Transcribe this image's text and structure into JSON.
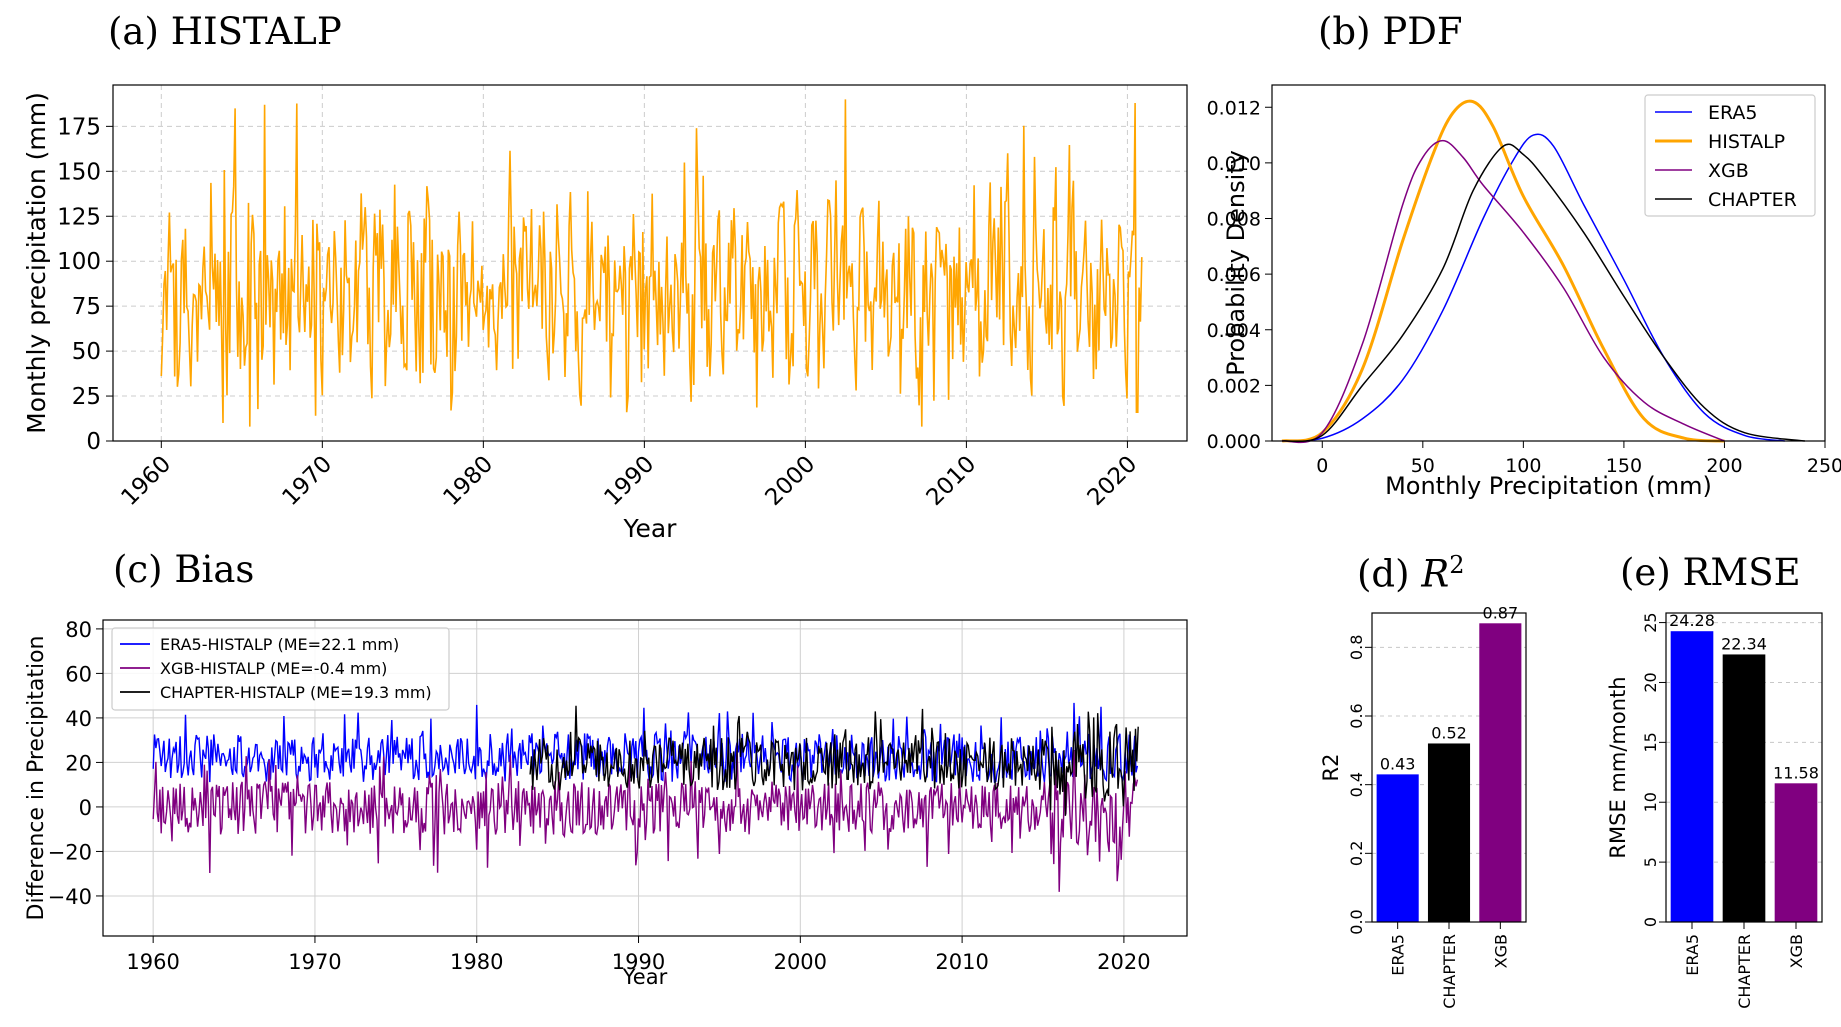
{
  "panel_titles": {
    "a": "(a) HISTALP",
    "b": "(b) PDF",
    "c": "(c) Bias",
    "d_prefix": "(d) ",
    "d_symbol": "R",
    "d_sup": "2",
    "e": "(e) RMSE"
  },
  "colors": {
    "histalp": "#FFA500",
    "era5": "#0000FF",
    "xgb": "#800080",
    "chapter": "#000000"
  },
  "chart_data": [
    {
      "id": "a",
      "type": "line",
      "title": "(a) HISTALP",
      "xlabel": "Year",
      "ylabel": "Monthly precipitation (mm)",
      "xlim": [
        1957,
        2023.7
      ],
      "ylim": [
        0,
        198
      ],
      "xticks": [
        "1960",
        "1970",
        "1980",
        "1990",
        "2000",
        "2010",
        "2020"
      ],
      "yticks": [
        "0",
        "25",
        "50",
        "75",
        "100",
        "125",
        "150",
        "175"
      ],
      "grid": true,
      "series": [
        {
          "color": "#FFA500",
          "x_start": 1960.0,
          "x_step_years": 0.0833,
          "n_points": 732,
          "mean": 80,
          "min": 8,
          "max": 190,
          "peaks": [
            [
              1964.6,
              185
            ],
            [
              1966.4,
              187
            ],
            [
              2002.5,
              190
            ],
            [
              2020.5,
              188
            ],
            [
              1993.2,
              174
            ],
            [
              2012.6,
              160
            ],
            [
              2014.2,
              158
            ]
          ],
          "troughs": [
            [
              1963.8,
              10
            ],
            [
              1965.5,
              8
            ],
            [
              1969.6,
              14
            ],
            [
              2007.2,
              8
            ],
            [
              1988.9,
              16
            ],
            [
              2020.6,
              16
            ]
          ]
        }
      ]
    },
    {
      "id": "b",
      "type": "line",
      "title": "(b) PDF",
      "xlabel": "Monthly Precipitation (mm)",
      "ylabel": "Probability Density",
      "xlim": [
        -25,
        250
      ],
      "ylim": [
        0,
        0.0128
      ],
      "xticks": [
        "0",
        "50",
        "100",
        "150",
        "200",
        "250"
      ],
      "yticks": [
        "0.000",
        "0.002",
        "0.004",
        "0.006",
        "0.008",
        "0.010",
        "0.012"
      ],
      "legend_position": "top-right",
      "series": [
        {
          "name": "ERA5",
          "color": "#0000FF",
          "x": [
            -20,
            0,
            20,
            40,
            60,
            80,
            95,
            105,
            115,
            130,
            150,
            170,
            190,
            210,
            230
          ],
          "y": [
            0,
            0.0001,
            0.0008,
            0.0022,
            0.0047,
            0.008,
            0.0101,
            0.011,
            0.0106,
            0.0085,
            0.0058,
            0.003,
            0.001,
            0.0002,
            0
          ]
        },
        {
          "name": "HISTALP",
          "color": "#FFA500",
          "x": [
            -20,
            0,
            20,
            40,
            55,
            65,
            75,
            85,
            100,
            120,
            140,
            160,
            180,
            200
          ],
          "y": [
            0,
            0.0003,
            0.0026,
            0.0072,
            0.0103,
            0.0118,
            0.0122,
            0.0113,
            0.0088,
            0.0063,
            0.0033,
            0.0008,
            0.0001,
            0
          ]
        },
        {
          "name": "XGB",
          "color": "#800080",
          "x": [
            -20,
            0,
            20,
            40,
            50,
            60,
            70,
            80,
            100,
            120,
            140,
            160,
            180,
            200
          ],
          "y": [
            0,
            0.0003,
            0.0035,
            0.0085,
            0.0102,
            0.0108,
            0.0102,
            0.0092,
            0.0075,
            0.0055,
            0.003,
            0.0014,
            0.0006,
            0
          ]
        },
        {
          "name": "CHAPTER",
          "color": "#000000",
          "x": [
            -20,
            0,
            20,
            40,
            60,
            75,
            90,
            100,
            110,
            130,
            150,
            170,
            190,
            210,
            240
          ],
          "y": [
            0,
            0.0002,
            0.002,
            0.0038,
            0.0062,
            0.009,
            0.0106,
            0.0103,
            0.0095,
            0.0075,
            0.0052,
            0.003,
            0.0012,
            0.0003,
            0
          ]
        }
      ]
    },
    {
      "id": "c",
      "type": "line",
      "title": "(c) Bias",
      "xlabel": "Year",
      "ylabel": "Difference in Precipitation",
      "xlim": [
        1956.9,
        2023.9
      ],
      "ylim": [
        -58,
        84
      ],
      "xticks": [
        "1960",
        "1970",
        "1980",
        "1990",
        "2000",
        "2010",
        "2020"
      ],
      "yticks": [
        "−40",
        "−20",
        "0",
        "20",
        "40",
        "60",
        "80"
      ],
      "grid": true,
      "legend_position": "top-left",
      "series": [
        {
          "name": "ERA5-HISTALP (ME=22.1 mm)",
          "color": "#0000FF",
          "x_start": 1960.0,
          "x_end": 2020.9,
          "mean": 22.1
        },
        {
          "name": "XGB-HISTALP (ME=-0.4 mm)",
          "color": "#800080",
          "x_start": 1960.0,
          "x_end": 2020.9,
          "mean": -0.4
        },
        {
          "name": "CHAPTER-HISTALP (ME=19.3 mm)",
          "color": "#000000",
          "x_start": 1983.3,
          "x_end": 2020.9,
          "mean": 19.3
        }
      ]
    },
    {
      "id": "d",
      "type": "bar",
      "title": "(d) R²",
      "ylabel": "R2",
      "categories": [
        "ERA5",
        "CHAPTER",
        "XGB"
      ],
      "values": [
        0.43,
        0.52,
        0.87
      ],
      "value_labels": [
        "0.43",
        "0.52",
        "0.87"
      ],
      "bar_colors": [
        "#0000FF",
        "#000000",
        "#800080"
      ],
      "ylim": [
        0,
        0.9
      ],
      "yticks": [
        "0.0",
        "0.2",
        "0.4",
        "0.6",
        "0.8"
      ],
      "grid": true
    },
    {
      "id": "e",
      "type": "bar",
      "title": "(e) RMSE",
      "ylabel": "RMSE mm/month",
      "categories": [
        "ERA5",
        "CHAPTER",
        "XGB"
      ],
      "values": [
        24.28,
        22.34,
        11.58
      ],
      "value_labels": [
        "24.28",
        "22.34",
        "11.58"
      ],
      "bar_colors": [
        "#0000FF",
        "#000000",
        "#800080"
      ],
      "ylim": [
        0,
        25.8
      ],
      "yticks": [
        "0",
        "5",
        "10",
        "15",
        "20",
        "25"
      ],
      "grid": true
    }
  ]
}
